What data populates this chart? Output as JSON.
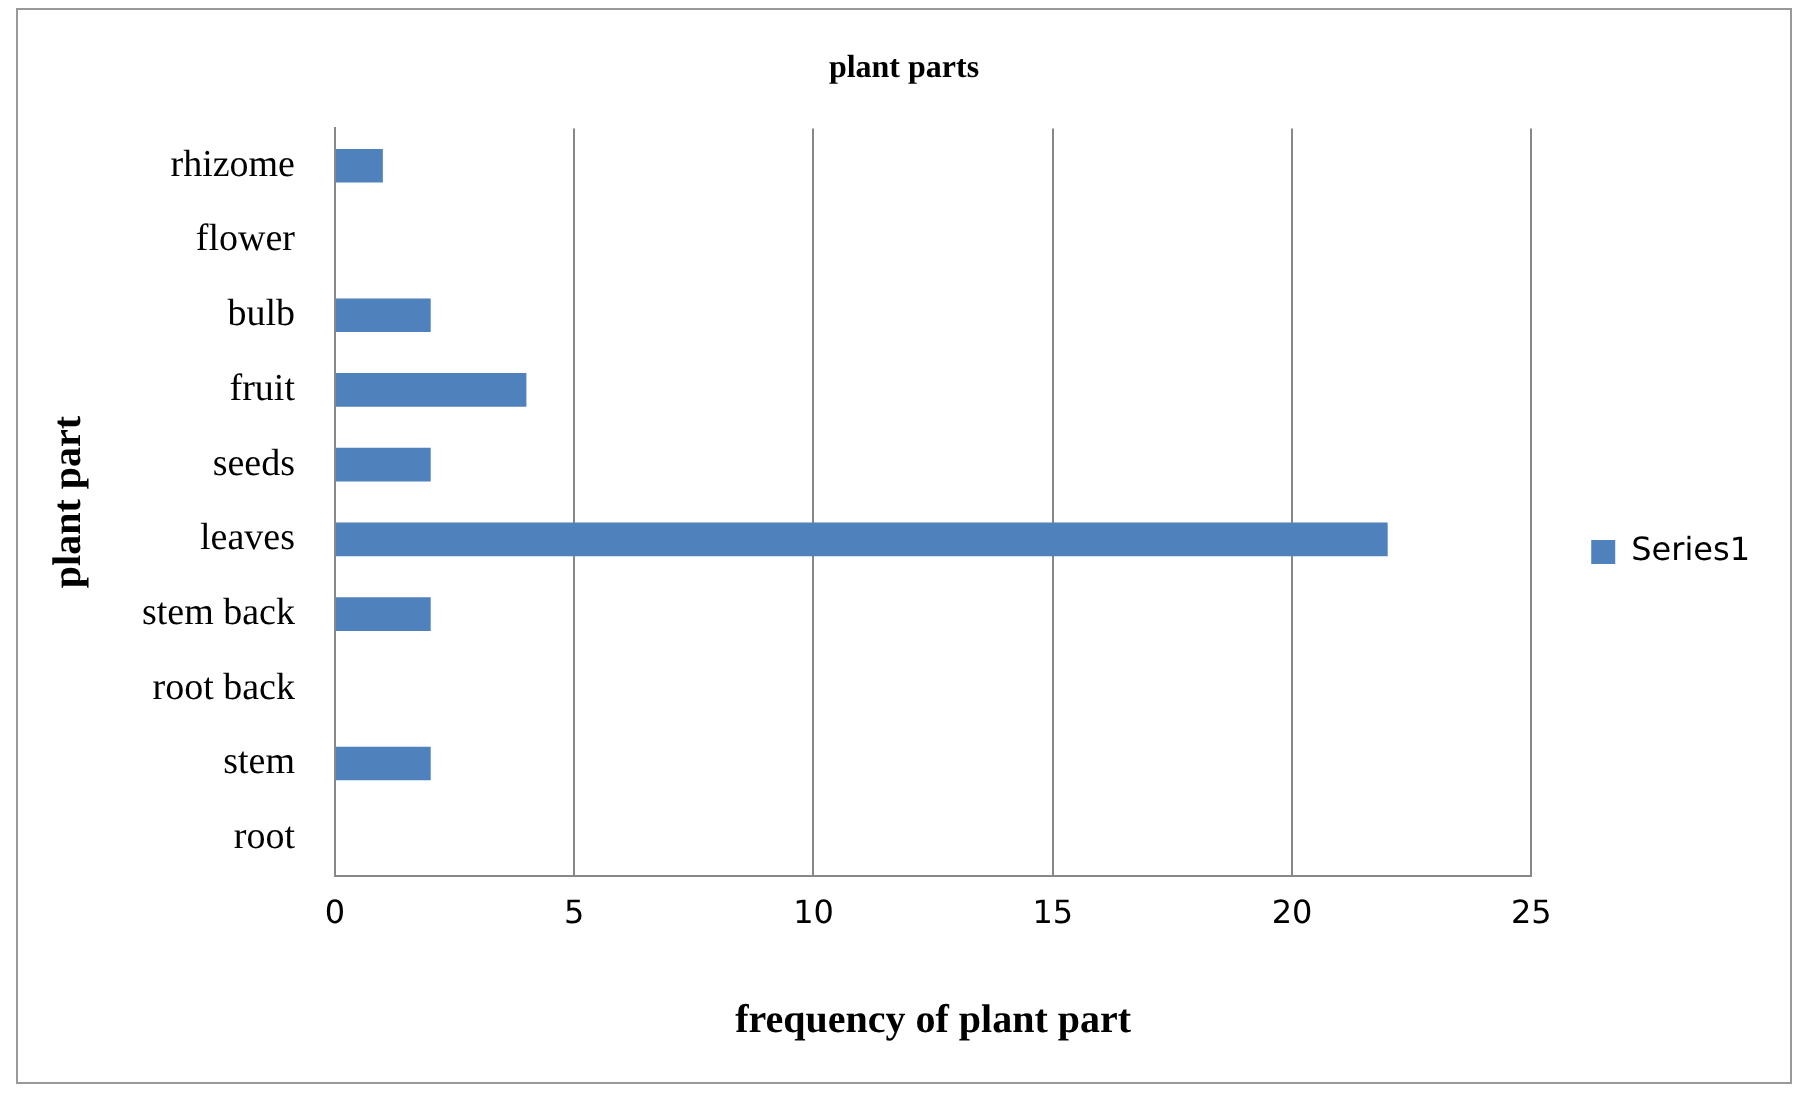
{
  "chart_data": {
    "type": "bar",
    "orientation": "horizontal",
    "title": "plant parts",
    "xlabel": "frequency of plant part",
    "ylabel": "plant part",
    "categories": [
      "rhizome",
      "flower",
      "bulb",
      "fruit",
      "seeds",
      "leaves",
      "stem back",
      "root back",
      "stem",
      "root"
    ],
    "series": [
      {
        "name": "Series1",
        "color": "#4f81bd",
        "values": [
          1,
          0,
          2,
          4,
          2,
          22,
          2,
          0,
          2,
          0
        ]
      }
    ],
    "xlim": [
      0,
      25
    ],
    "xticks": [
      0,
      5,
      10,
      15,
      20,
      25
    ],
    "grid": "x",
    "legend": "right"
  }
}
